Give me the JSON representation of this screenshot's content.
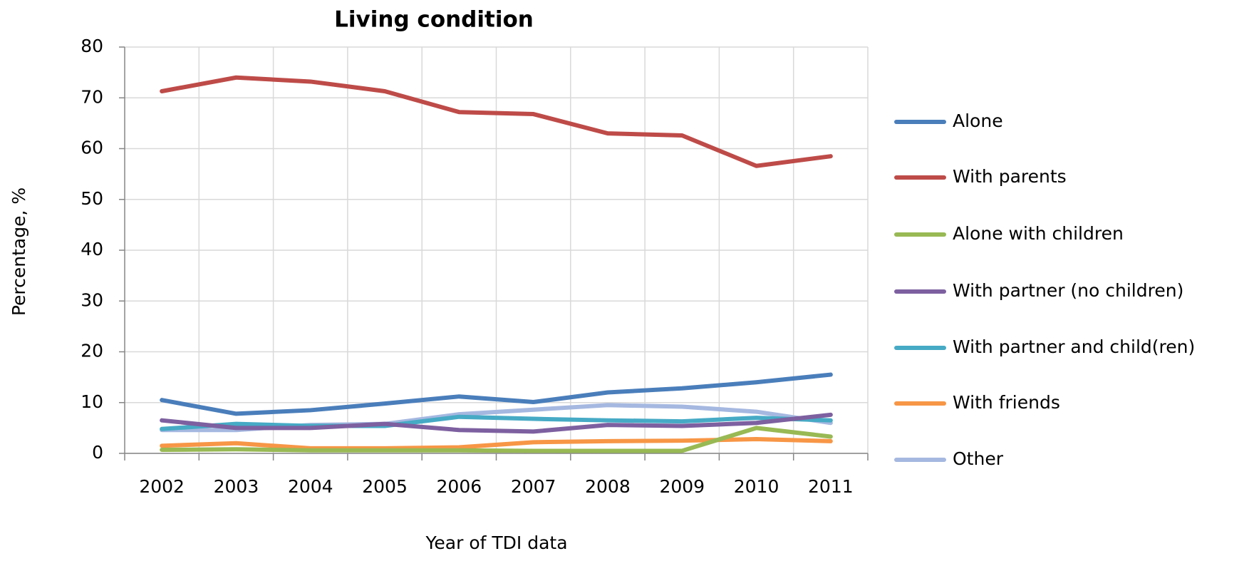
{
  "chart_data": {
    "type": "line",
    "title": "Living condition",
    "x_label": "Year of TDI data",
    "y_label": "Percentage, %",
    "categories": [
      "2002",
      "2003",
      "2004",
      "2005",
      "2006",
      "2007",
      "2008",
      "2009",
      "2010",
      "2011"
    ],
    "series": [
      {
        "name": "Alone",
        "color": "#4a7ebb",
        "values": [
          10.5,
          7.8,
          8.5,
          9.8,
          11.2,
          10.1,
          12,
          12.8,
          14,
          15.5
        ]
      },
      {
        "name": "With parents",
        "color": "#be4b48",
        "values": [
          71.3,
          74,
          73.2,
          71.3,
          67.2,
          66.8,
          63,
          62.6,
          56.6,
          58.5
        ]
      },
      {
        "name": "Alone with children",
        "color": "#98b954",
        "values": [
          0.7,
          0.8,
          0.6,
          0.6,
          0.6,
          0.5,
          0.5,
          0.5,
          5,
          3.3
        ]
      },
      {
        "name": "With partner (no children)",
        "color": "#7d60a0",
        "values": [
          6.5,
          5,
          5,
          5.8,
          4.6,
          4.3,
          5.6,
          5.4,
          6,
          7.6
        ]
      },
      {
        "name": "With partner and child(ren)",
        "color": "#46aac5",
        "values": [
          4.8,
          5.8,
          5.4,
          5.4,
          7.2,
          6.8,
          6.5,
          6.3,
          7,
          6.5
        ]
      },
      {
        "name": "With friends",
        "color": "#f79646",
        "values": [
          1.5,
          2,
          1,
          1,
          1.2,
          2.2,
          2.4,
          2.5,
          2.8,
          2.4
        ]
      },
      {
        "name": "Other",
        "color": "#a5b8e0",
        "values": [
          4.6,
          4.6,
          5.6,
          5.8,
          7.7,
          8.6,
          9.5,
          9.2,
          8.2,
          6
        ]
      }
    ],
    "ylim": [
      0,
      80
    ],
    "yticks": [
      0,
      10,
      20,
      30,
      40,
      50,
      60,
      70,
      80
    ],
    "grid": true,
    "legend": "right"
  }
}
